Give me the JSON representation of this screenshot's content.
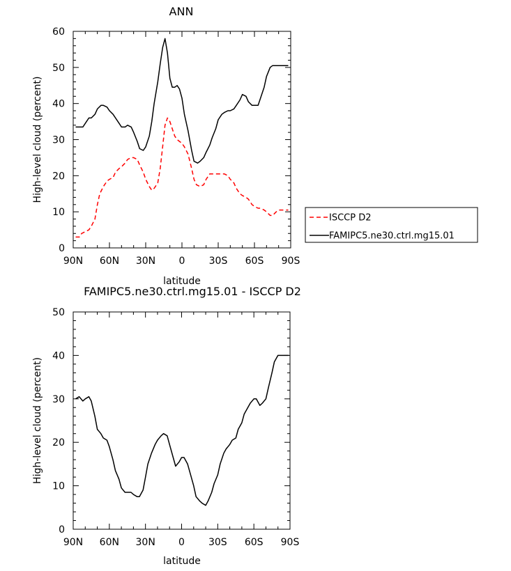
{
  "chart_data": [
    {
      "type": "line",
      "title": "ANN",
      "xlabel": "latitude",
      "ylabel": "High-level cloud (percent)",
      "xlim": [
        90,
        -90
      ],
      "ylim": [
        0,
        60
      ],
      "xticks": [
        90,
        60,
        30,
        0,
        -30,
        -60,
        -90
      ],
      "xtick_labels": [
        "90N",
        "60N",
        "30N",
        "0",
        "30S",
        "60S",
        "90S"
      ],
      "yticks": [
        0,
        10,
        20,
        30,
        40,
        50,
        60
      ],
      "ytick_labels": [
        "0",
        "10",
        "20",
        "30",
        "40",
        "50",
        "60"
      ],
      "legend_position": "right",
      "series": [
        {
          "name": "ISCCP D2",
          "color": "#ff0000",
          "dash": "dashed",
          "x": [
            88,
            85,
            83,
            80,
            77,
            75,
            72,
            70,
            68,
            65,
            62,
            60,
            57,
            55,
            52,
            50,
            47,
            45,
            42,
            40,
            37,
            35,
            32,
            30,
            27,
            25,
            23,
            20,
            18,
            16,
            14,
            12,
            10,
            8,
            6,
            4,
            2,
            0,
            -2,
            -5,
            -8,
            -10,
            -12,
            -15,
            -18,
            -20,
            -23,
            -25,
            -28,
            -30,
            -33,
            -35,
            -38,
            -40,
            -43,
            -45,
            -48,
            -50,
            -53,
            -55,
            -58,
            -60,
            -63,
            -65,
            -68,
            -70,
            -73,
            -75,
            -78,
            -80,
            -83,
            -85,
            -88
          ],
          "y": [
            3,
            3,
            4,
            4.5,
            5,
            6,
            8,
            12,
            15,
            17,
            18.5,
            19,
            19.5,
            21,
            22,
            22.5,
            23.5,
            24.5,
            25,
            25,
            24.5,
            23,
            21,
            19,
            17,
            16,
            16.5,
            18,
            22,
            28,
            34,
            36,
            35,
            33,
            31,
            30,
            29.5,
            29,
            28,
            26,
            22,
            19,
            17.5,
            17,
            17.5,
            19,
            20.5,
            20.5,
            20.5,
            20.5,
            20.5,
            20.5,
            20,
            19,
            18,
            16.5,
            15,
            14.5,
            14,
            13.5,
            12,
            11.5,
            11,
            11,
            10.5,
            10,
            9,
            9,
            10,
            10.5,
            10.5,
            10.5,
            10.5
          ]
        },
        {
          "name": "FAMIPC5.ne30.ctrl.mg15.01",
          "color": "#000000",
          "dash": "solid",
          "x": [
            88,
            85,
            82,
            80,
            77,
            75,
            72,
            70,
            67,
            65,
            62,
            60,
            57,
            55,
            52,
            50,
            47,
            45,
            42,
            40,
            37,
            35,
            32,
            30,
            27,
            25,
            23,
            20,
            18,
            16,
            14,
            12,
            10,
            8,
            6,
            4,
            2,
            0,
            -2,
            -5,
            -8,
            -10,
            -13,
            -15,
            -18,
            -20,
            -23,
            -25,
            -28,
            -30,
            -33,
            -35,
            -38,
            -40,
            -43,
            -45,
            -48,
            -50,
            -53,
            -55,
            -58,
            -60,
            -63,
            -65,
            -68,
            -70,
            -73,
            -75,
            -78,
            -80,
            -83,
            -85,
            -88
          ],
          "y": [
            33.5,
            33.5,
            33.5,
            34.5,
            36,
            36,
            37,
            38.5,
            39.5,
            39.5,
            39,
            38,
            37,
            36,
            34.5,
            33.5,
            33.5,
            34,
            33.5,
            32,
            29.5,
            27.5,
            27,
            28,
            31,
            35,
            40,
            46,
            51,
            55.5,
            58,
            54,
            47,
            44.5,
            44.5,
            45,
            44,
            41.5,
            37,
            32.5,
            27,
            24,
            23.5,
            24,
            25,
            26.5,
            28.5,
            30.5,
            33,
            35.5,
            37,
            37.5,
            38,
            38,
            38.5,
            39.5,
            41,
            42.5,
            42,
            40.5,
            39.5,
            39.5,
            39.5,
            41.5,
            44.5,
            47.5,
            50,
            50.5,
            50.5,
            50.5,
            50.5,
            50.5,
            50.5
          ]
        }
      ]
    },
    {
      "type": "line",
      "title": "FAMIPC5.ne30.ctrl.mg15.01 - ISCCP D2",
      "xlabel": "latitude",
      "ylabel": "High-level cloud (percent)",
      "xlim": [
        90,
        -90
      ],
      "ylim": [
        0,
        50
      ],
      "xticks": [
        90,
        60,
        30,
        0,
        -30,
        -60,
        -90
      ],
      "xtick_labels": [
        "90N",
        "60N",
        "30N",
        "0",
        "30S",
        "60S",
        "90S"
      ],
      "yticks": [
        0,
        10,
        20,
        30,
        40,
        50
      ],
      "ytick_labels": [
        "0",
        "10",
        "20",
        "30",
        "40",
        "50"
      ],
      "series": [
        {
          "color": "#000000",
          "dash": "solid",
          "x": [
            88,
            85,
            82,
            80,
            77,
            75,
            72,
            70,
            67,
            65,
            62,
            60,
            57,
            55,
            52,
            50,
            47,
            45,
            42,
            40,
            37,
            35,
            32,
            30,
            28,
            25,
            22,
            20,
            17,
            15,
            12,
            10,
            7,
            5,
            2,
            0,
            -2,
            -5,
            -7,
            -10,
            -12,
            -15,
            -17,
            -20,
            -22,
            -25,
            -27,
            -30,
            -32,
            -35,
            -37,
            -40,
            -42,
            -45,
            -47,
            -50,
            -52,
            -55,
            -57,
            -60,
            -62,
            -65,
            -67,
            -70,
            -72,
            -75,
            -77,
            -80,
            -82,
            -85,
            -87,
            -89
          ],
          "y": [
            30,
            30.5,
            29.5,
            30,
            30.5,
            29.5,
            26,
            23,
            22,
            21,
            20.5,
            19,
            16,
            13.5,
            11.5,
            9.5,
            8.5,
            8.5,
            8.5,
            8,
            7.5,
            7.5,
            9,
            12,
            15,
            17.5,
            19.5,
            20.5,
            21.5,
            22,
            21.5,
            19.5,
            16.5,
            14.5,
            15.5,
            16.5,
            16.5,
            15,
            13,
            10,
            7.5,
            6.5,
            6,
            5.5,
            6.5,
            8.5,
            10.5,
            12.5,
            15,
            17.5,
            18.5,
            19.5,
            20.5,
            21,
            23,
            24.5,
            26.5,
            28,
            29,
            30,
            30,
            28.5,
            29,
            30,
            32.5,
            36,
            38.5,
            40,
            40,
            40,
            40,
            40
          ]
        }
      ]
    }
  ]
}
